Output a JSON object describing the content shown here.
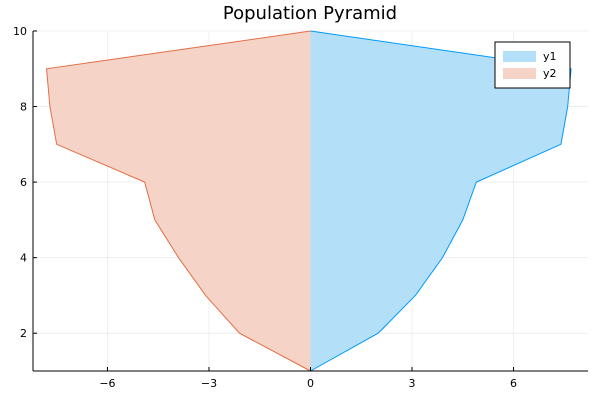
{
  "chart_data": {
    "type": "area",
    "title": "Population Pyramid",
    "xlabel": "",
    "ylabel": "",
    "xlim": [
      -8.2,
      8.2
    ],
    "ylim": [
      1,
      10
    ],
    "xticks": [
      -6,
      -3,
      0,
      3,
      6
    ],
    "yticks": [
      2,
      4,
      6,
      8,
      10
    ],
    "grid": true,
    "legend_position": "top-right",
    "series": [
      {
        "name": "y1",
        "color": "#009AFA",
        "fill": "#B3DFF8",
        "points": [
          {
            "x": 0,
            "y": 1
          },
          {
            "x": 2.0,
            "y": 2
          },
          {
            "x": 3.1,
            "y": 3
          },
          {
            "x": 3.9,
            "y": 4
          },
          {
            "x": 4.5,
            "y": 5
          },
          {
            "x": 4.9,
            "y": 6
          },
          {
            "x": 7.4,
            "y": 7
          },
          {
            "x": 7.6,
            "y": 8
          },
          {
            "x": 7.7,
            "y": 9
          },
          {
            "x": 0,
            "y": 10
          }
        ]
      },
      {
        "name": "y2",
        "color": "#E26F46",
        "fill": "#F5D3C6",
        "points": [
          {
            "x": 0,
            "y": 1
          },
          {
            "x": -2.1,
            "y": 2
          },
          {
            "x": -3.1,
            "y": 3
          },
          {
            "x": -3.9,
            "y": 4
          },
          {
            "x": -4.6,
            "y": 5
          },
          {
            "x": -4.9,
            "y": 6
          },
          {
            "x": -7.5,
            "y": 7
          },
          {
            "x": -7.7,
            "y": 8
          },
          {
            "x": -7.8,
            "y": 9
          },
          {
            "x": 0,
            "y": 10
          }
        ]
      }
    ]
  }
}
